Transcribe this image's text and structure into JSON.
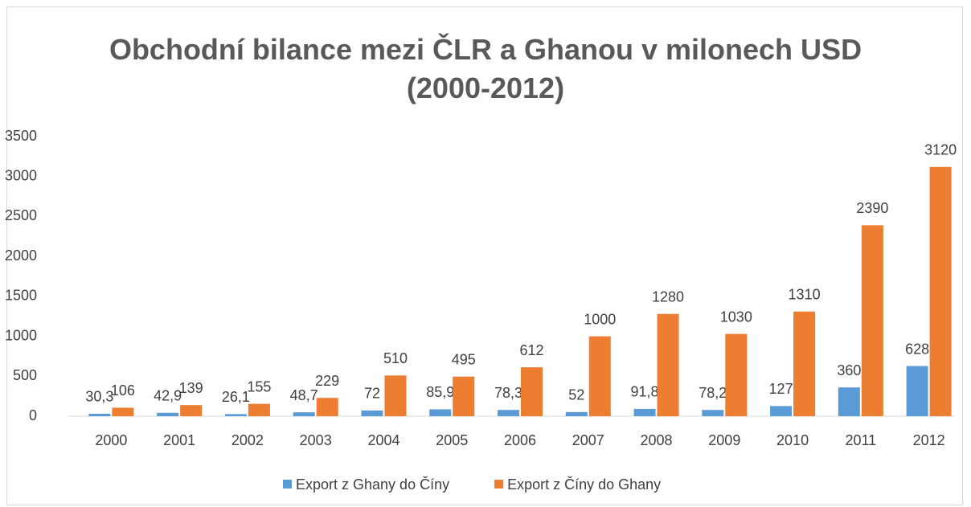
{
  "chart_data": {
    "type": "bar",
    "title": "Obchodní bilance mezi ČLR a Ghanou v milonech USD (2000-2012)",
    "categories": [
      "2000",
      "2001",
      "2002",
      "2003",
      "2004",
      "2005",
      "2006",
      "2007",
      "2008",
      "2009",
      "2010",
      "2011",
      "2012"
    ],
    "series": [
      {
        "name": "Export z Ghany do Číny",
        "color": "#5b9bd5",
        "values": [
          30.3,
          42.9,
          26.1,
          48.7,
          72,
          85.9,
          78.3,
          52,
          91.8,
          78.2,
          127,
          360,
          628
        ],
        "value_labels": [
          "30,3",
          "42,9",
          "26,1",
          "48,7",
          "72",
          "85,9",
          "78,3",
          "52",
          "91,8",
          "78,2",
          "127",
          "360",
          "628"
        ]
      },
      {
        "name": "Export z Číny do Ghany",
        "color": "#ed7d31",
        "values": [
          106,
          139,
          155,
          229,
          510,
          495,
          612,
          1000,
          1280,
          1030,
          1310,
          2390,
          3120
        ]
      }
    ],
    "ylim": [
      0,
      3500
    ],
    "yticks": [
      0,
      500,
      1000,
      1500,
      2000,
      2500,
      3000,
      3500
    ],
    "grid": false,
    "legend": "bottom"
  }
}
